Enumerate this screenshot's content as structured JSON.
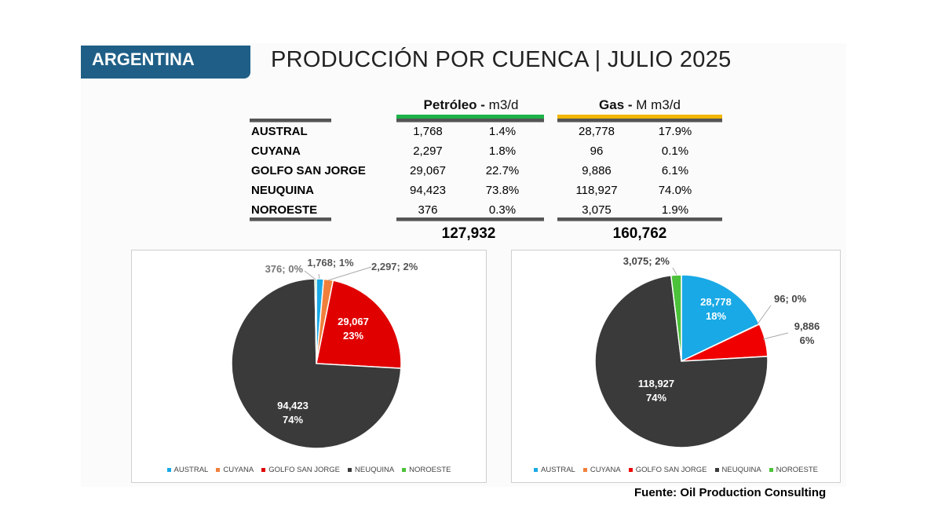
{
  "header": {
    "country": "ARGENTINA",
    "title": "PRODUCCIÓN POR CUENCA | JULIO 2025"
  },
  "table": {
    "oil_header": {
      "name": "Petróleo",
      "sep": " - ",
      "unit": "m3/d",
      "color": "#1db34a"
    },
    "gas_header": {
      "name": "Gas",
      "sep": " - ",
      "unit": "M m3/d",
      "color": "#f2b705"
    },
    "rows": [
      {
        "basin": "AUSTRAL",
        "oil": "1,768",
        "oil_pct": "1.4%",
        "gas": "28,778",
        "gas_pct": "17.9%"
      },
      {
        "basin": "CUYANA",
        "oil": "2,297",
        "oil_pct": "1.8%",
        "gas": "96",
        "gas_pct": "0.1%"
      },
      {
        "basin": "GOLFO SAN JORGE",
        "oil": "29,067",
        "oil_pct": "22.7%",
        "gas": "9,886",
        "gas_pct": "6.1%"
      },
      {
        "basin": "NEUQUINA",
        "oil": "94,423",
        "oil_pct": "73.8%",
        "gas": "118,927",
        "gas_pct": "74.0%"
      },
      {
        "basin": "NOROESTE",
        "oil": "376",
        "oil_pct": "0.3%",
        "gas": "3,075",
        "gas_pct": "1.9%"
      }
    ],
    "oil_total": "127,932",
    "gas_total": "160,762"
  },
  "chart_data": [
    {
      "type": "pie",
      "categories": [
        "AUSTRAL",
        "CUYANA",
        "GOLFO SAN JORGE",
        "NEUQUINA",
        "NOROESTE"
      ],
      "values": [
        1768,
        2297,
        29067,
        94423,
        376
      ],
      "colors": [
        "#19a9e6",
        "#f07f3c",
        "#e00000",
        "#3a3a3a",
        "#4cc13a"
      ],
      "data_labels": [
        "1,768; 1%",
        "2,297; 2%",
        "29,067\n23%",
        "94,423\n74%",
        "376; 0%"
      ],
      "legend": "bottom"
    },
    {
      "type": "pie",
      "categories": [
        "AUSTRAL",
        "CUYANA",
        "GOLFO SAN JORGE",
        "NEUQUINA",
        "NOROESTE"
      ],
      "values": [
        28778,
        96,
        9886,
        118927,
        3075
      ],
      "colors": [
        "#19a9e6",
        "#f07f3c",
        "#f00000",
        "#3a3a3a",
        "#4cc13a"
      ],
      "data_labels": [
        "28,778\n18%",
        "96; 0%",
        "9,886\n6%",
        "118,927\n74%",
        "3,075; 2%"
      ],
      "legend": "bottom"
    }
  ],
  "source": "Fuente: Oil Production Consulting"
}
